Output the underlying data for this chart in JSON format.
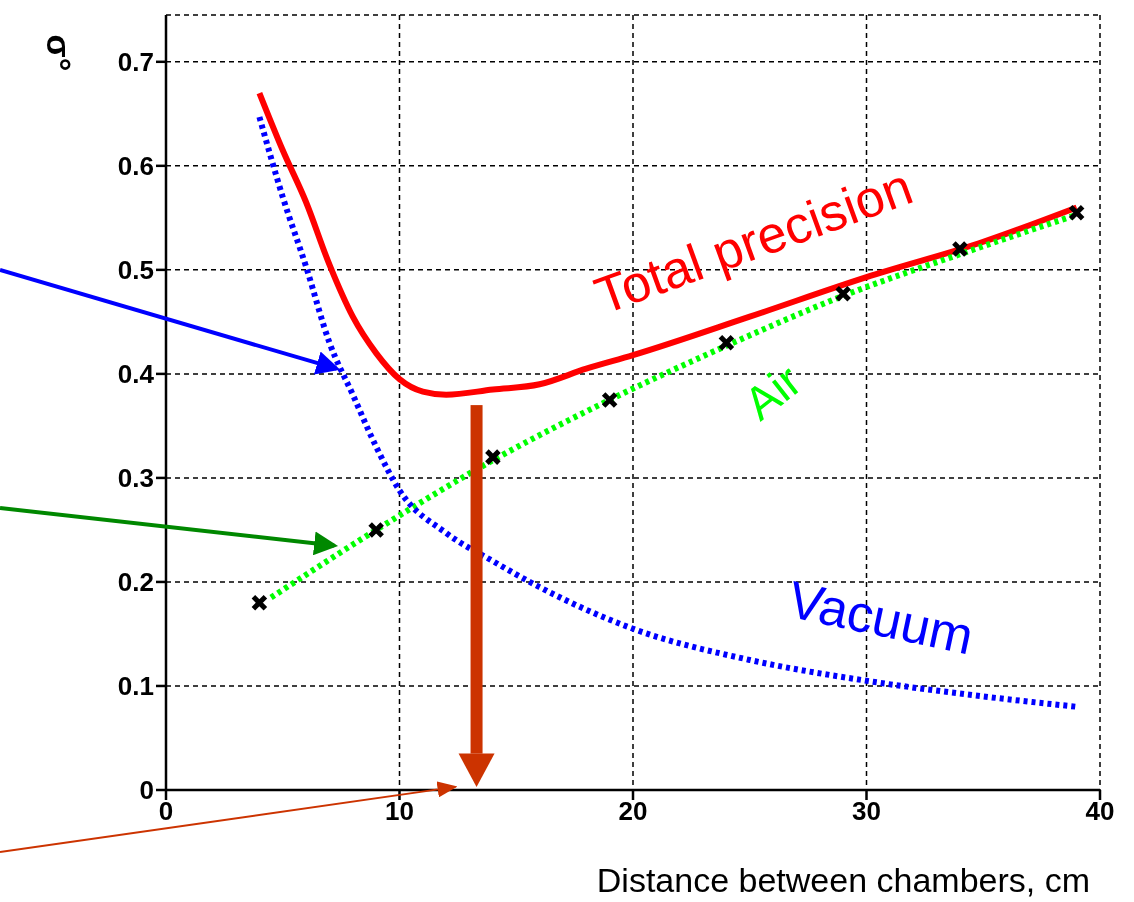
{
  "chart_data": {
    "type": "line",
    "xlabel": "Distance between chambers, cm",
    "ylabel": "σ°",
    "xlim": [
      0,
      40
    ],
    "xticks": [
      0,
      10,
      20,
      30,
      40
    ],
    "ylim": [
      0,
      0.745
    ],
    "yticks": [
      0,
      0.1,
      0.2,
      0.3,
      0.4,
      0.5,
      0.6,
      0.7
    ],
    "grid": true,
    "legend": false,
    "series": [
      {
        "name": "Total precision",
        "color": "#ff0000",
        "line_style": "solid",
        "marker": "none",
        "x": [
          4,
          5,
          6,
          7,
          8,
          9,
          10,
          11,
          12,
          14,
          16,
          18,
          20,
          25,
          30,
          35,
          39
        ],
        "values": [
          0.67,
          0.615,
          0.565,
          0.505,
          0.455,
          0.42,
          0.395,
          0.383,
          0.38,
          0.385,
          0.39,
          0.405,
          0.418,
          0.455,
          0.493,
          0.527,
          0.56
        ]
      },
      {
        "name": "Air",
        "color": "#00ff00",
        "line_style": "dotted",
        "marker": "none",
        "x": [
          4.5,
          9,
          14,
          19,
          24,
          29,
          34,
          39
        ],
        "values": [
          0.185,
          0.25,
          0.317,
          0.375,
          0.427,
          0.475,
          0.515,
          0.553
        ]
      },
      {
        "name": "Vacuum",
        "color": "#0000ff",
        "line_style": "dotted",
        "marker": "none",
        "x": [
          4,
          5,
          6,
          7,
          8,
          9,
          10,
          12,
          14,
          16,
          20,
          25,
          30,
          35,
          39
        ],
        "values": [
          0.647,
          0.57,
          0.503,
          0.43,
          0.38,
          0.33,
          0.288,
          0.247,
          0.22,
          0.195,
          0.155,
          0.125,
          0.105,
          0.09,
          0.08
        ]
      },
      {
        "type": "scatter",
        "color": "#000000",
        "marker": "cross",
        "x": [
          4,
          9,
          14,
          19,
          24,
          29,
          34,
          39
        ],
        "values": [
          0.18,
          0.25,
          0.32,
          0.375,
          0.43,
          0.477,
          0.52,
          0.555
        ]
      }
    ]
  }
}
